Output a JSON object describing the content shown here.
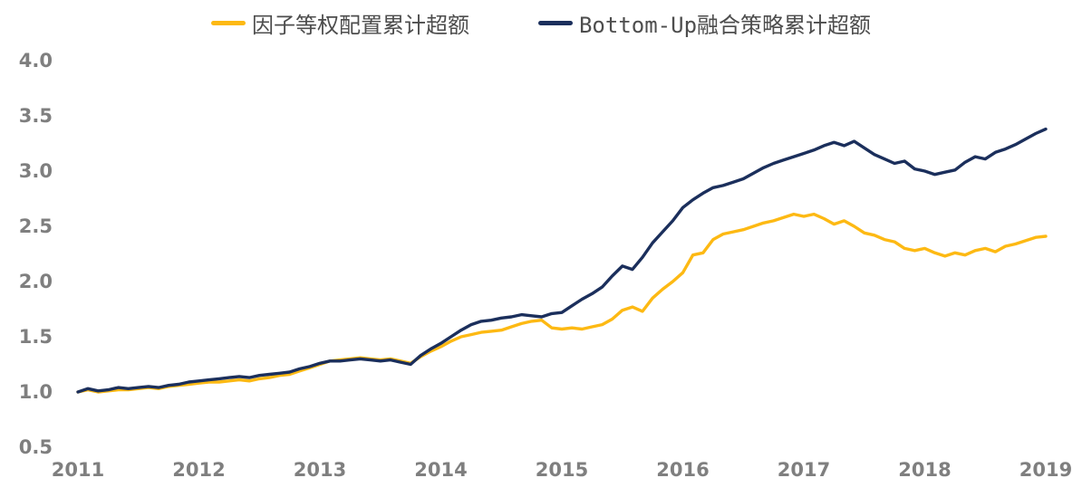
{
  "chart_data": {
    "type": "line",
    "title": "",
    "xlabel": "",
    "ylabel": "",
    "grid": false,
    "background": "#ffffff",
    "legend_position": "top-center",
    "axis_label_color": "#7f7f7f",
    "legend_text_color": "#4d4d4d",
    "x_frequency": "monthly",
    "x_start_year": 2011,
    "x_end_year": 2019,
    "x_tick_years": [
      2011,
      2012,
      2013,
      2014,
      2015,
      2016,
      2017,
      2018,
      2019
    ],
    "x_tick_labels": [
      "2011",
      "2012",
      "2013",
      "2014",
      "2015",
      "2016",
      "2017",
      "2018",
      "2019"
    ],
    "ylim": [
      0.5,
      4.0
    ],
    "y_tick_values": [
      0.5,
      1.0,
      1.5,
      2.0,
      2.5,
      3.0,
      3.5,
      4.0
    ],
    "y_tick_labels": [
      "0.5",
      "1.0",
      "1.5",
      "2.0",
      "2.5",
      "3.0",
      "3.5",
      "4.0"
    ],
    "series": [
      {
        "name": "因子等权配置累计超额",
        "color": "#FDB913",
        "line_width": 3.4,
        "values": [
          1.0,
          1.02,
          1.0,
          1.01,
          1.02,
          1.02,
          1.03,
          1.04,
          1.03,
          1.05,
          1.06,
          1.07,
          1.08,
          1.09,
          1.09,
          1.1,
          1.11,
          1.1,
          1.12,
          1.13,
          1.15,
          1.16,
          1.19,
          1.22,
          1.25,
          1.28,
          1.29,
          1.3,
          1.31,
          1.3,
          1.29,
          1.3,
          1.28,
          1.26,
          1.32,
          1.37,
          1.41,
          1.46,
          1.5,
          1.52,
          1.54,
          1.55,
          1.56,
          1.59,
          1.62,
          1.64,
          1.65,
          1.58,
          1.57,
          1.58,
          1.57,
          1.59,
          1.61,
          1.66,
          1.74,
          1.77,
          1.73,
          1.85,
          1.93,
          2.0,
          2.08,
          2.24,
          2.26,
          2.38,
          2.43,
          2.45,
          2.47,
          2.5,
          2.53,
          2.55,
          2.58,
          2.61,
          2.59,
          2.61,
          2.57,
          2.52,
          2.55,
          2.5,
          2.44,
          2.42,
          2.38,
          2.36,
          2.3,
          2.28,
          2.3,
          2.26,
          2.23,
          2.26,
          2.24,
          2.28,
          2.3,
          2.27,
          2.32,
          2.34,
          2.37,
          2.4,
          2.41
        ]
      },
      {
        "name": "Bottom-Up融合策略累计超额",
        "color": "#1B2F5C",
        "line_width": 3.4,
        "values": [
          1.0,
          1.03,
          1.01,
          1.02,
          1.04,
          1.03,
          1.04,
          1.05,
          1.04,
          1.06,
          1.07,
          1.09,
          1.1,
          1.11,
          1.12,
          1.13,
          1.14,
          1.13,
          1.15,
          1.16,
          1.17,
          1.18,
          1.21,
          1.23,
          1.26,
          1.28,
          1.28,
          1.29,
          1.3,
          1.29,
          1.28,
          1.29,
          1.27,
          1.25,
          1.33,
          1.39,
          1.44,
          1.5,
          1.56,
          1.61,
          1.64,
          1.65,
          1.67,
          1.68,
          1.7,
          1.69,
          1.68,
          1.71,
          1.72,
          1.78,
          1.84,
          1.89,
          1.95,
          2.05,
          2.14,
          2.11,
          2.22,
          2.35,
          2.45,
          2.55,
          2.67,
          2.74,
          2.8,
          2.85,
          2.87,
          2.9,
          2.93,
          2.98,
          3.03,
          3.07,
          3.1,
          3.13,
          3.16,
          3.19,
          3.23,
          3.26,
          3.23,
          3.27,
          3.21,
          3.15,
          3.11,
          3.07,
          3.09,
          3.02,
          3.0,
          2.97,
          2.99,
          3.01,
          3.08,
          3.13,
          3.11,
          3.17,
          3.2,
          3.24,
          3.29,
          3.34,
          3.38
        ]
      }
    ]
  },
  "layout_values": {
    "plot_x_at_start_year": 86,
    "plot_x_per_year": 133.5,
    "plot_y_at_ymax": 67,
    "plot_y_per_unit": 122,
    "y_label_right_x": 58,
    "x_label_baseline_y": 526
  }
}
